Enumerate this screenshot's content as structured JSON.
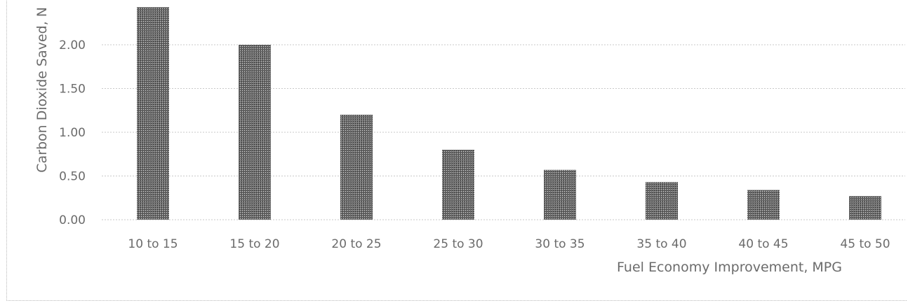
{
  "chart_data": {
    "type": "bar",
    "categories": [
      "10 to 15",
      "15 to 20",
      "20 to 25",
      "25 to 30",
      "30 to 35",
      "35 to 40",
      "40 to 45",
      "45 to 50"
    ],
    "values": [
      2.43,
      2.0,
      1.2,
      0.8,
      0.57,
      0.43,
      0.34,
      0.27
    ],
    "title": "",
    "xlabel": "Fuel Economy Improvement, MPG",
    "ylabel": "Carbon Dioxide Saved, N",
    "ylim": [
      0,
      2.5
    ],
    "yticks": [
      "0.00",
      "0.50",
      "1.00",
      "1.50",
      "2.00"
    ],
    "grid": true,
    "legend": "none",
    "bar_fill": "#4a4a4a"
  }
}
